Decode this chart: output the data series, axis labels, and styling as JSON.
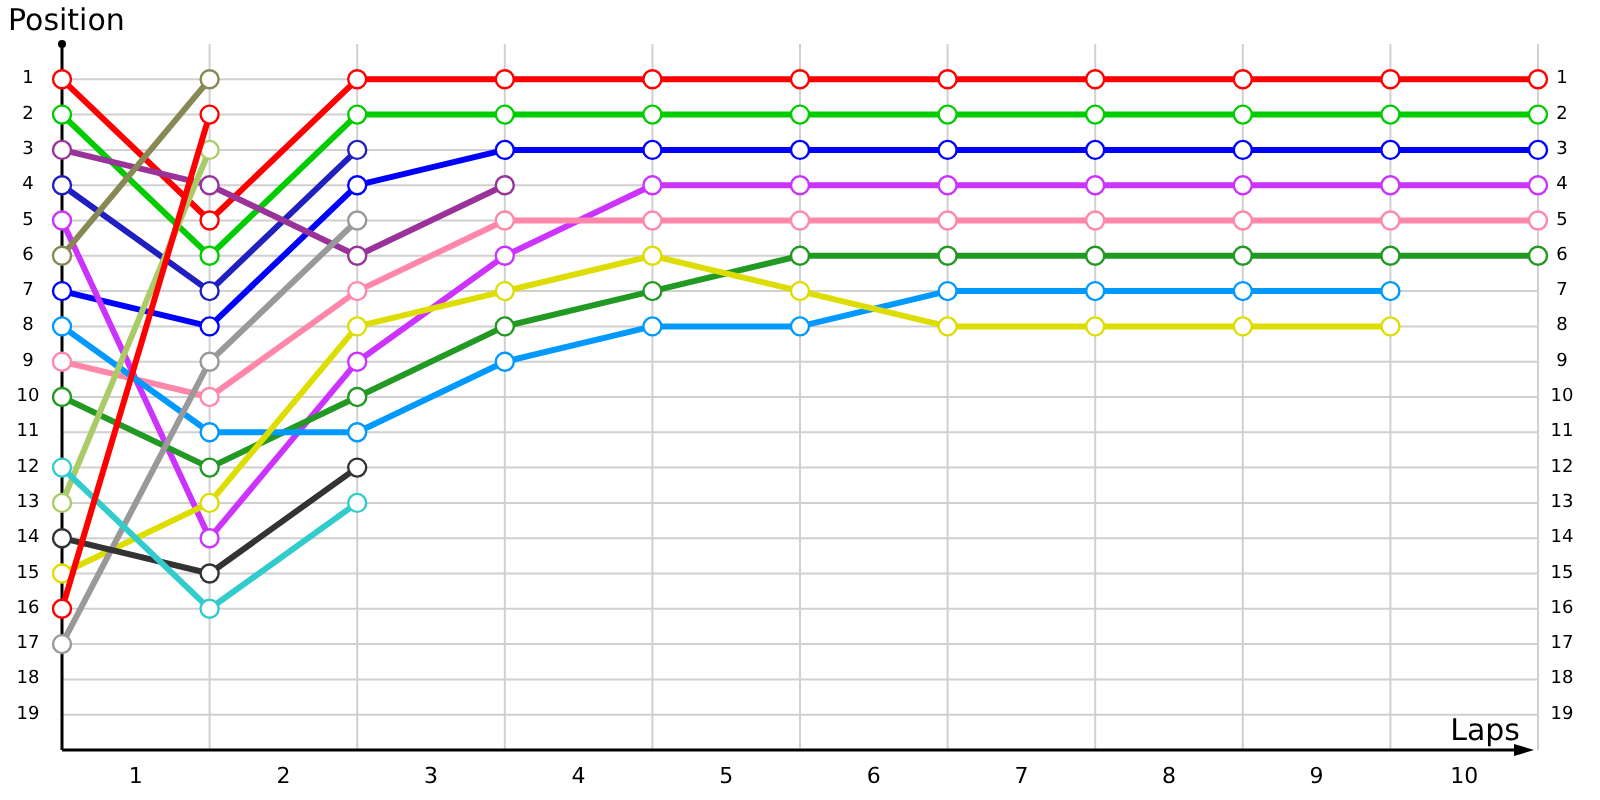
{
  "chart_data": {
    "type": "line",
    "ylabel": "Position",
    "xlabel": "Laps",
    "xlim": [
      0,
      10
    ],
    "ylim": [
      20,
      0
    ],
    "y2lim": [
      20,
      0
    ],
    "xticks": [
      {
        "value": 0,
        "label": null
      },
      {
        "value": 0.5,
        "label": "1"
      },
      {
        "value": 1,
        "label": null
      },
      {
        "value": 1.5,
        "label": "2"
      },
      {
        "value": 2,
        "label": null
      },
      {
        "value": 2.5,
        "label": "3"
      },
      {
        "value": 3,
        "label": null
      },
      {
        "value": 3.5,
        "label": "4"
      },
      {
        "value": 4,
        "label": null
      },
      {
        "value": 4.5,
        "label": "5"
      },
      {
        "value": 5,
        "label": null
      },
      {
        "value": 5.5,
        "label": "6"
      },
      {
        "value": 6,
        "label": null
      },
      {
        "value": 6.5,
        "label": "7"
      },
      {
        "value": 7,
        "label": null
      },
      {
        "value": 7.5,
        "label": "8"
      },
      {
        "value": 8,
        "label": null
      },
      {
        "value": 8.5,
        "label": "9"
      },
      {
        "value": 9,
        "label": null
      },
      {
        "value": 9.5,
        "label": "10"
      },
      {
        "value": 10,
        "label": null
      }
    ],
    "yticks": [
      1,
      2,
      3,
      4,
      5,
      6,
      7,
      8,
      9,
      10,
      11,
      12,
      13,
      14,
      15,
      16,
      17,
      18,
      19
    ],
    "y2ticks": [
      1,
      2,
      3,
      4,
      5,
      6,
      7,
      8,
      9,
      10,
      11,
      12,
      13,
      14,
      15,
      16,
      17,
      18,
      19
    ],
    "x": [
      0,
      1,
      2,
      3,
      4,
      5,
      6,
      7,
      8,
      9,
      10
    ],
    "grid": true,
    "marker": "circle",
    "line_style": "solid",
    "series": [
      {
        "color": "#ff0000",
        "values": [
          1,
          5,
          1,
          1,
          1,
          1,
          1,
          1,
          1,
          1,
          1
        ]
      },
      {
        "color": "#00cc00",
        "values": [
          2,
          6,
          2,
          2,
          2,
          2,
          2,
          2,
          2,
          2,
          2
        ]
      },
      {
        "color": "#2020c0",
        "values": [
          4,
          7,
          3,
          null,
          null,
          null,
          null,
          null,
          null,
          null,
          null
        ]
      },
      {
        "color": "#0000ff",
        "values": [
          7,
          8,
          4,
          3,
          3,
          3,
          3,
          3,
          3,
          3,
          3
        ]
      },
      {
        "color": "#993399",
        "values": [
          3,
          4,
          6,
          4,
          null,
          null,
          null,
          null,
          null,
          null,
          null
        ]
      },
      {
        "color": "#cc33ff",
        "values": [
          5,
          14,
          9,
          6,
          4,
          4,
          4,
          4,
          4,
          4,
          4
        ]
      },
      {
        "color": "#ff88aa",
        "values": [
          9,
          10,
          7,
          5,
          5,
          5,
          5,
          5,
          5,
          5,
          5
        ]
      },
      {
        "color": "#229922",
        "values": [
          10,
          12,
          10,
          8,
          7,
          6,
          6,
          6,
          6,
          6,
          6
        ]
      },
      {
        "color": "#0099ff",
        "values": [
          8,
          11,
          11,
          9,
          8,
          8,
          7,
          7,
          7,
          7,
          null
        ]
      },
      {
        "color": "#dddd00",
        "values": [
          15,
          13,
          8,
          7,
          6,
          7,
          8,
          8,
          8,
          8,
          null
        ]
      },
      {
        "color": "#888855",
        "values": [
          6,
          1,
          null,
          null,
          null,
          null,
          null,
          null,
          null,
          null,
          null
        ]
      },
      {
        "color": "#aacc66",
        "values": [
          13,
          3,
          null,
          null,
          null,
          null,
          null,
          null,
          null,
          null,
          null
        ]
      },
      {
        "color": "#999999",
        "values": [
          17,
          9,
          5,
          null,
          null,
          null,
          null,
          null,
          null,
          null,
          null
        ]
      },
      {
        "color": "#333333",
        "values": [
          14,
          15,
          12,
          null,
          null,
          null,
          null,
          null,
          null,
          null,
          null
        ]
      },
      {
        "color": "#33cccc",
        "values": [
          12,
          16,
          13,
          null,
          null,
          null,
          null,
          null,
          null,
          null,
          null
        ]
      },
      {
        "color": "#ff0000",
        "values": [
          16,
          2,
          null,
          null,
          null,
          null,
          null,
          null,
          null,
          null,
          null
        ]
      }
    ]
  }
}
